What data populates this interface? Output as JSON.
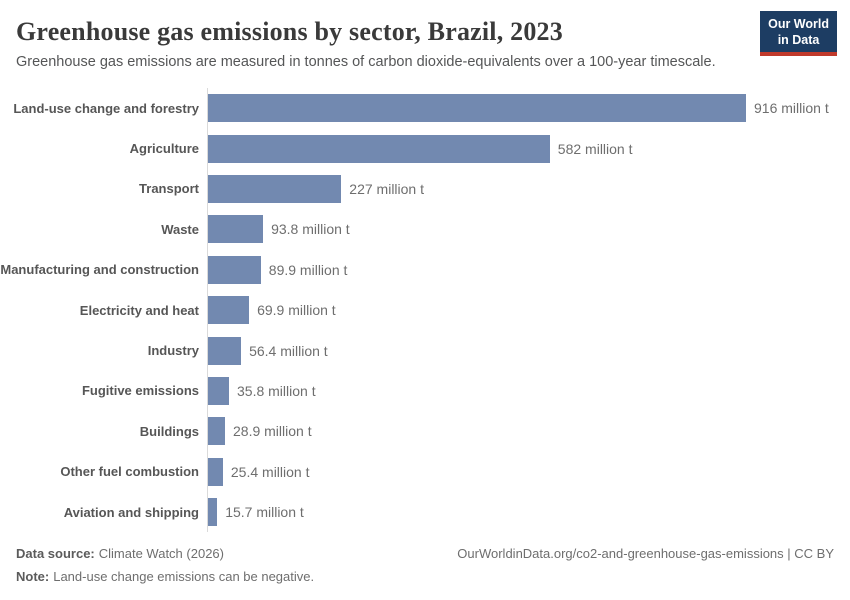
{
  "logo": {
    "line1": "Our World",
    "line2": "in Data"
  },
  "chart_data": {
    "type": "bar",
    "orientation": "horizontal",
    "title": "Greenhouse gas emissions by sector, Brazil, 2023",
    "subtitle": "Greenhouse gas emissions are measured in tonnes of carbon dioxide-equivalents over a 100-year timescale.",
    "unit": "million t",
    "categories": [
      "Land-use change and forestry",
      "Agriculture",
      "Transport",
      "Waste",
      "Manufacturing and construction",
      "Electricity and heat",
      "Industry",
      "Fugitive emissions",
      "Buildings",
      "Other fuel combustion",
      "Aviation and shipping"
    ],
    "values": [
      916,
      582,
      227,
      93.8,
      89.9,
      69.9,
      56.4,
      35.8,
      28.9,
      25.4,
      15.7
    ],
    "value_labels": [
      "916 million t",
      "582 million t",
      "227 million t",
      "93.8 million t",
      "89.9 million t",
      "69.9 million t",
      "56.4 million t",
      "35.8 million t",
      "28.9 million t",
      "25.4 million t",
      "15.7 million t"
    ],
    "xlim": [
      0,
      916
    ],
    "grid": false,
    "legend": "none",
    "bar_color": "#7289b0"
  },
  "footer": {
    "data_source_label": "Data source:",
    "data_source_text": "Climate Watch (2026)",
    "note_label": "Note:",
    "note_text": "Land-use change emissions can be negative.",
    "link_text": "OurWorldinData.org/co2-and-greenhouse-gas-emissions | CC BY"
  },
  "colors": {
    "bar": "#7289b0",
    "axis_line": "#dadada",
    "logo_bg": "#1d3d63",
    "logo_accent": "#c0392b",
    "title_text": "#3a3a3a",
    "muted_text": "#6e6e6e"
  }
}
